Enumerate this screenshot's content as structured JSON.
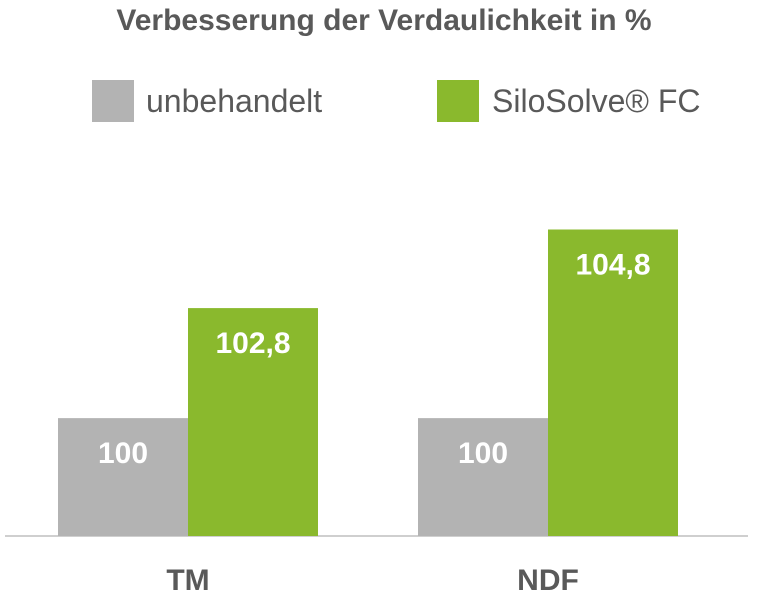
{
  "colors": {
    "unbehandelt": "#b3b3b3",
    "silosolve": "#8ab92d",
    "text": "#595959",
    "value_label": "#ffffff",
    "axis": "#bfbfbf"
  },
  "chart_data": {
    "type": "bar",
    "title": "Verbesserung der Verdaulichkeit in %",
    "categories": [
      "TM",
      "NDF"
    ],
    "series": [
      {
        "name": "unbehandelt",
        "values": [
          100,
          100
        ],
        "labels": [
          "100",
          "100"
        ],
        "baselines": [
          0,
          0
        ]
      },
      {
        "name": "SiloSolve® FC",
        "values": [
          102.8,
          104.8
        ],
        "labels": [
          "102,8",
          "104,8"
        ],
        "baselines": [
          0,
          0
        ]
      }
    ],
    "legend": "top",
    "grid": false,
    "xlabel": "",
    "ylabel": "",
    "ylim": [
      97,
      105.5
    ],
    "note": "Axis is truncated (y-axis not shown); bars start from a cropped baseline."
  }
}
